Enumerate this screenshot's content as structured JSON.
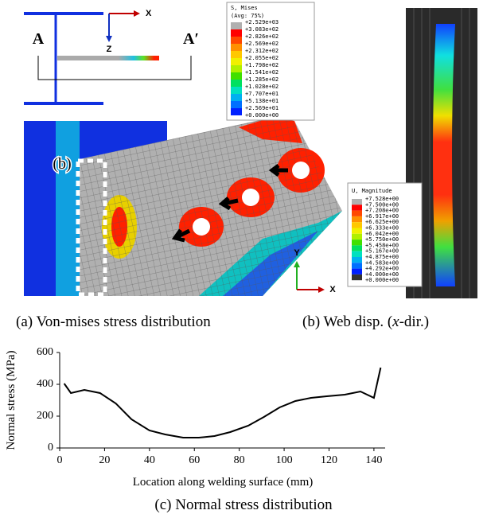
{
  "panel_a": {
    "section_labels": [
      "A",
      "A′"
    ],
    "axis_labels": [
      "X",
      "Z",
      "Y",
      "X"
    ],
    "callout": "(b)",
    "legend_title": "S, Mises",
    "legend_subtitle": "(Avg: 75%)",
    "legend_labels": [
      "+2.529e+03",
      "+3.083e+02",
      "+2.826e+02",
      "+2.569e+02",
      "+2.312e+02",
      "+2.055e+02",
      "+1.798e+02",
      "+1.541e+02",
      "+1.285e+02",
      "+1.028e+02",
      "+7.707e+01",
      "+5.138e+01",
      "+2.569e+01",
      "+0.000e+00"
    ],
    "caption": "(a) Von-mises stress distribution"
  },
  "panel_b": {
    "legend_title": "U, Magnitude",
    "legend_labels": [
      "+7.528e+00",
      "+7.500e+00",
      "+7.208e+00",
      "+6.917e+00",
      "+6.625e+00",
      "+6.333e+00",
      "+6.042e+00",
      "+5.750e+00",
      "+5.458e+00",
      "+5.167e+00",
      "+4.875e+00",
      "+4.583e+00",
      "+4.292e+00",
      "+4.000e+00",
      "+0.000e+00"
    ],
    "caption": [
      "(b) Web disp. (",
      "x",
      "-dir.)"
    ]
  },
  "chart_data": {
    "type": "line",
    "caption": "(c) Normal stress distribution",
    "x_label": "Location along welding surface (mm)",
    "y_label": "Normal stress (MPa)",
    "x": [
      2,
      5,
      11,
      18,
      25,
      32,
      40,
      47,
      55,
      62,
      69,
      76,
      84,
      91,
      98,
      105,
      112,
      119,
      127,
      134,
      140,
      143
    ],
    "values": [
      405,
      345,
      365,
      345,
      280,
      180,
      110,
      85,
      65,
      65,
      75,
      100,
      140,
      195,
      255,
      295,
      315,
      325,
      335,
      355,
      315,
      505
    ],
    "color": "#000000",
    "xlim": [
      0,
      145
    ],
    "xticks": [
      0,
      20,
      40,
      60,
      80,
      100,
      120,
      140
    ],
    "ylim": [
      0,
      600
    ],
    "yticks": [
      0,
      200,
      400,
      600
    ]
  }
}
